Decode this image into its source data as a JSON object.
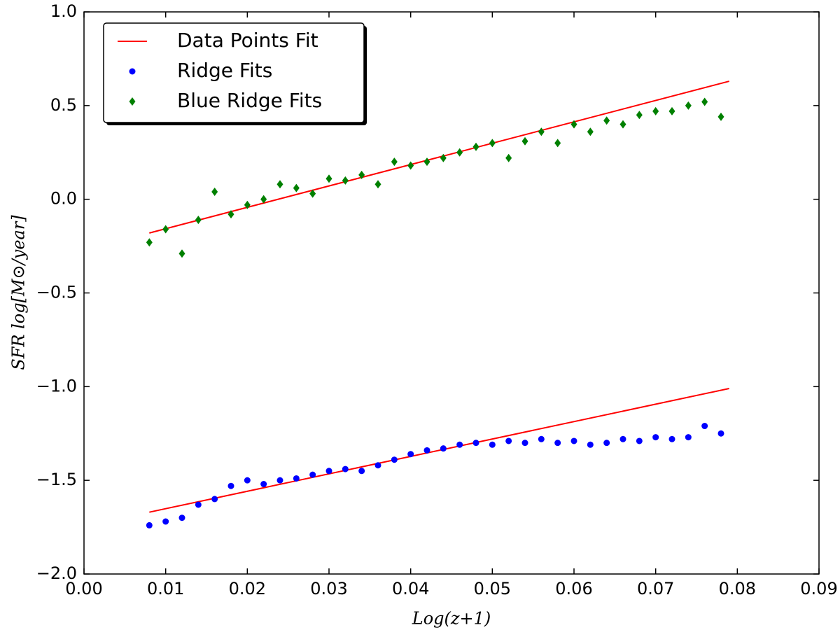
{
  "chart_data": {
    "type": "scatter",
    "xlabel": "Log(z+1)",
    "ylabel": "SFR log[M⊙/year]",
    "xlim": [
      0,
      0.09
    ],
    "ylim": [
      -2,
      1
    ],
    "xticks": [
      {
        "value": 0,
        "label": "0.00"
      },
      {
        "value": 0.01,
        "label": "0.01"
      },
      {
        "value": 0.02,
        "label": "0.02"
      },
      {
        "value": 0.03,
        "label": "0.03"
      },
      {
        "value": 0.04,
        "label": "0.04"
      },
      {
        "value": 0.05,
        "label": "0.05"
      },
      {
        "value": 0.06,
        "label": "0.06"
      },
      {
        "value": 0.07,
        "label": "0.07"
      },
      {
        "value": 0.08,
        "label": "0.08"
      },
      {
        "value": 0.09,
        "label": "0.09"
      }
    ],
    "yticks": [
      {
        "value": -2,
        "label": "−2.0"
      },
      {
        "value": -1.5,
        "label": "−1.5"
      },
      {
        "value": -1,
        "label": "−1.0"
      },
      {
        "value": -0.5,
        "label": "−0.5"
      },
      {
        "value": 0,
        "label": "0.0"
      },
      {
        "value": 0.5,
        "label": "0.5"
      },
      {
        "value": 1,
        "label": "1.0"
      }
    ],
    "legend": "upper left",
    "series": [
      {
        "name": "Data Points Fit",
        "color": "#ff0000",
        "marker": "line",
        "x": [
          0.008,
          0.079,
          null,
          0.008,
          0.079
        ],
        "values": [
          -0.18,
          0.63,
          null,
          -1.67,
          -1.01
        ]
      },
      {
        "name": "Ridge Fits",
        "color": "#0000ff",
        "marker": "circle",
        "x": [
          0.008,
          0.01,
          0.012,
          0.014,
          0.016,
          0.018,
          0.02,
          0.022,
          0.024,
          0.026,
          0.028,
          0.03,
          0.032,
          0.034,
          0.036,
          0.038,
          0.04,
          0.042,
          0.044,
          0.046,
          0.048,
          0.05,
          0.052,
          0.054,
          0.056,
          0.058,
          0.06,
          0.062,
          0.064,
          0.066,
          0.068,
          0.07,
          0.072,
          0.074,
          0.076,
          0.078
        ],
        "values": [
          -1.74,
          -1.72,
          -1.7,
          -1.63,
          -1.6,
          -1.53,
          -1.5,
          -1.52,
          -1.5,
          -1.49,
          -1.47,
          -1.45,
          -1.44,
          -1.45,
          -1.42,
          -1.39,
          -1.36,
          -1.34,
          -1.33,
          -1.31,
          -1.3,
          -1.31,
          -1.29,
          -1.3,
          -1.28,
          -1.3,
          -1.29,
          -1.31,
          -1.3,
          -1.28,
          -1.29,
          -1.27,
          -1.28,
          -1.27,
          -1.21,
          -1.25
        ]
      },
      {
        "name": "Blue Ridge Fits",
        "color": "#008000",
        "marker": "diamond",
        "x": [
          0.008,
          0.01,
          0.012,
          0.014,
          0.016,
          0.018,
          0.02,
          0.022,
          0.024,
          0.026,
          0.028,
          0.03,
          0.032,
          0.034,
          0.036,
          0.038,
          0.04,
          0.042,
          0.044,
          0.046,
          0.048,
          0.05,
          0.052,
          0.054,
          0.056,
          0.058,
          0.06,
          0.062,
          0.064,
          0.066,
          0.068,
          0.07,
          0.072,
          0.074,
          0.076,
          0.078
        ],
        "values": [
          -0.23,
          -0.16,
          -0.29,
          -0.11,
          0.04,
          -0.08,
          -0.03,
          0.0,
          0.08,
          0.06,
          0.03,
          0.11,
          0.1,
          0.13,
          0.08,
          0.2,
          0.18,
          0.2,
          0.22,
          0.25,
          0.28,
          0.3,
          0.22,
          0.31,
          0.36,
          0.3,
          0.4,
          0.36,
          0.42,
          0.4,
          0.45,
          0.47,
          0.47,
          0.5,
          0.52,
          0.44
        ]
      }
    ]
  }
}
